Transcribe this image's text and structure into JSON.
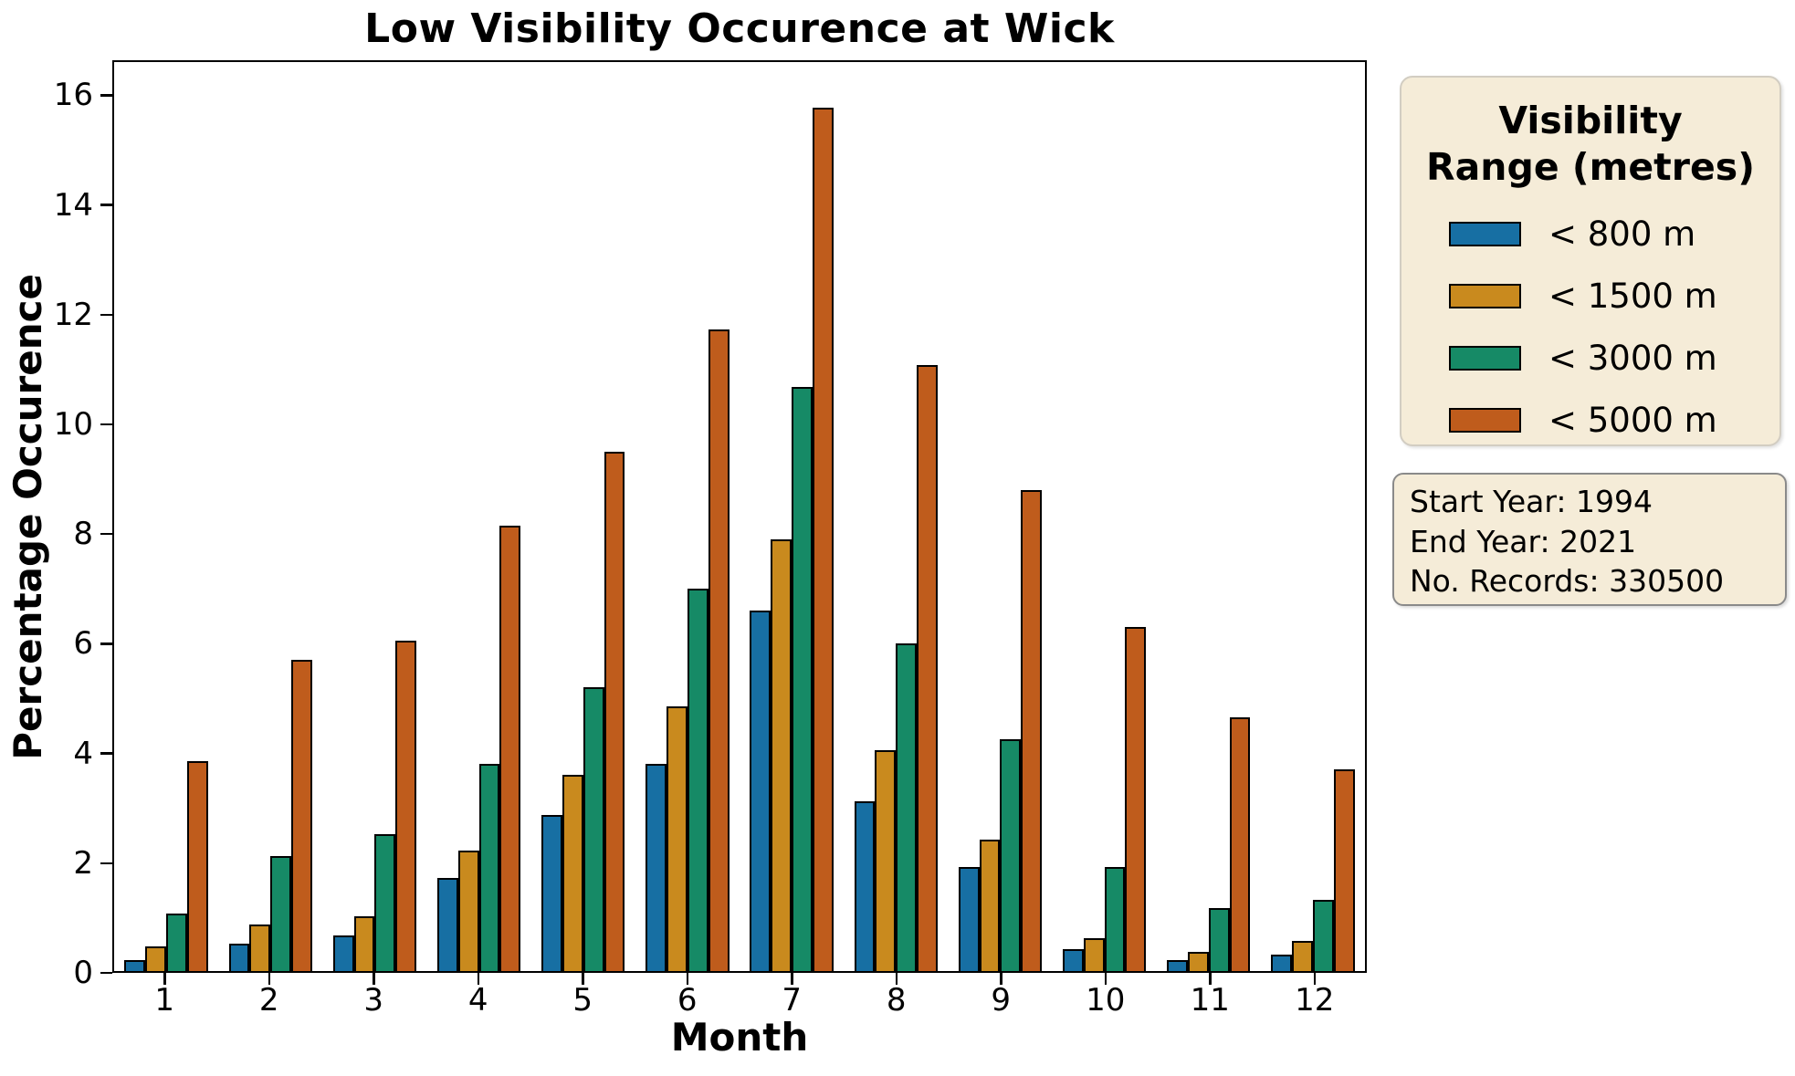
{
  "chart_data": {
    "type": "bar",
    "title": "Low Visibility Occurence at Wick",
    "xlabel": "Month",
    "ylabel": "Percentage Occurence",
    "categories": [
      1,
      2,
      3,
      4,
      5,
      6,
      7,
      8,
      9,
      10,
      11,
      12
    ],
    "series": [
      {
        "name": "< 800 m",
        "color": "#176fa3",
        "values": [
          0.2,
          0.5,
          0.65,
          1.7,
          2.85,
          3.8,
          6.6,
          3.1,
          1.9,
          0.4,
          0.2,
          0.3
        ]
      },
      {
        "name": "< 1500 m",
        "color": "#c98a1e",
        "values": [
          0.45,
          0.85,
          1.0,
          2.2,
          3.6,
          4.85,
          7.9,
          4.05,
          2.4,
          0.6,
          0.35,
          0.55
        ]
      },
      {
        "name": "< 3000 m",
        "color": "#168a66",
        "values": [
          1.05,
          2.1,
          2.5,
          3.8,
          5.2,
          7.0,
          10.7,
          6.0,
          4.25,
          1.9,
          1.15,
          1.3
        ]
      },
      {
        "name": "< 5000 m",
        "color": "#bf5c1c",
        "values": [
          3.85,
          5.7,
          6.05,
          8.15,
          9.5,
          11.75,
          15.8,
          11.1,
          8.8,
          6.3,
          4.65,
          3.7
        ]
      }
    ],
    "yticks": [
      0,
      2,
      4,
      6,
      8,
      10,
      12,
      14,
      16
    ],
    "ylim": [
      0,
      16.64
    ],
    "grid": false,
    "legend_position": "right"
  },
  "legend": {
    "title": "Visibility\nRange (metres)"
  },
  "info_box": {
    "lines": [
      "Start Year: 1994",
      "End Year: 2021",
      "No. Records: 330500"
    ]
  }
}
